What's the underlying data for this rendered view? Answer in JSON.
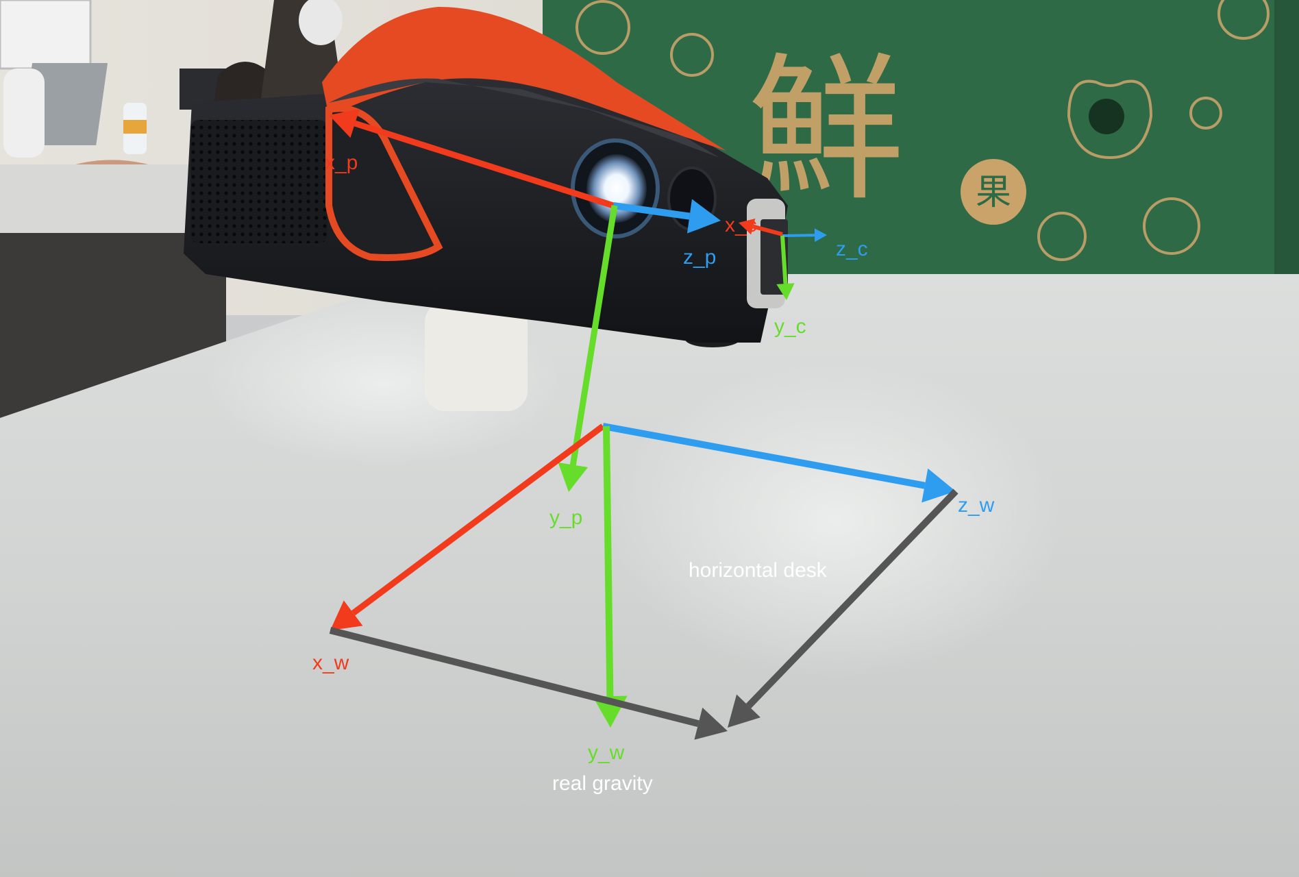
{
  "colors": {
    "x_axis": "#f23a1c",
    "y_axis": "#66dd2a",
    "z_axis": "#2e9df0",
    "edge": "#555555",
    "caption": "#ffffff"
  },
  "labels": {
    "x_p": "x_p",
    "y_p": "y_p",
    "z_p": "z_p",
    "x_c": "x_c",
    "y_c": "y_c",
    "z_c": "z_c",
    "x_w": "x_w",
    "y_w": "y_w",
    "z_w": "z_w",
    "desk": "horizontal desk",
    "gravity": "real gravity"
  },
  "box": {
    "char_main": "鮮",
    "char_small": "果"
  }
}
